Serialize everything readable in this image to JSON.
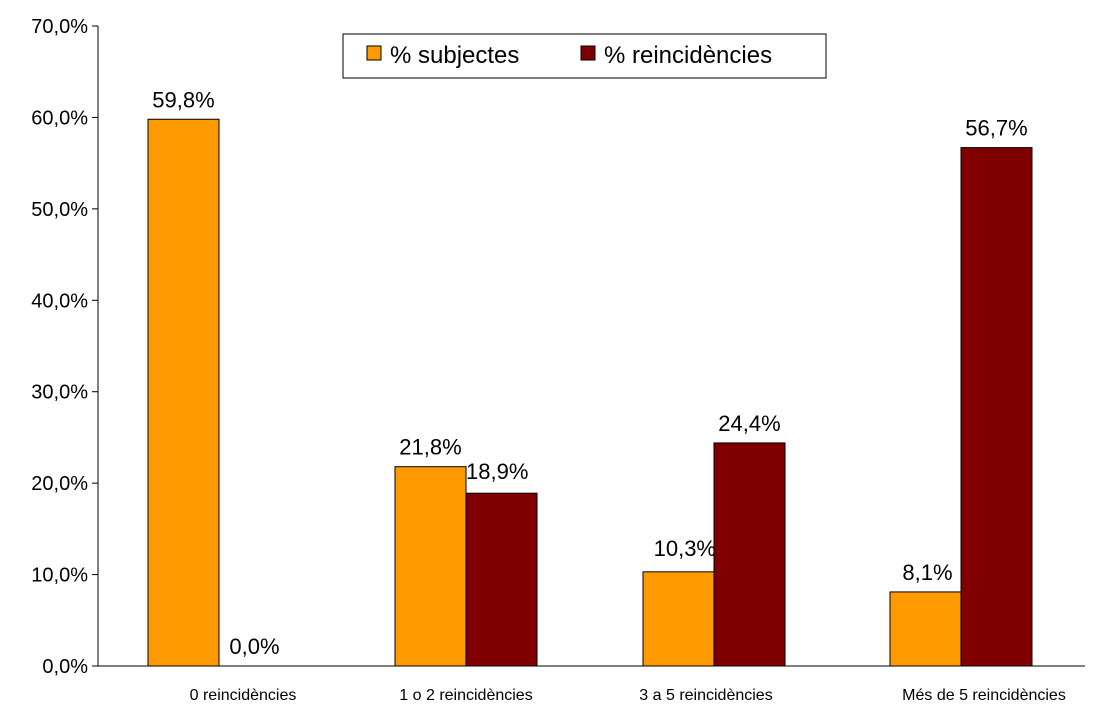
{
  "chart_data": {
    "type": "bar",
    "categories": [
      "0 reincidències",
      "1 o 2 reincidències",
      "3 a 5 reincidències",
      "Més de 5 reincidències"
    ],
    "series": [
      {
        "name": "% subjectes",
        "values": [
          59.8,
          21.8,
          10.3,
          8.1
        ],
        "labels": [
          "59,8%",
          "21,8%",
          "10,3%",
          "8,1%"
        ],
        "color": "#FF9900"
      },
      {
        "name": "% reincidències",
        "values": [
          0.0,
          18.9,
          24.4,
          56.7
        ],
        "labels": [
          "0,0%",
          "18,9%",
          "24,4%",
          "56,7%"
        ],
        "color": "#800000"
      }
    ],
    "yticks": [
      "0,0%",
      "10,0%",
      "20,0%",
      "30,0%",
      "40,0%",
      "50,0%",
      "60,0%",
      "70,0%"
    ],
    "ylim": [
      0,
      70
    ],
    "grid": false,
    "legend": "top-center"
  }
}
